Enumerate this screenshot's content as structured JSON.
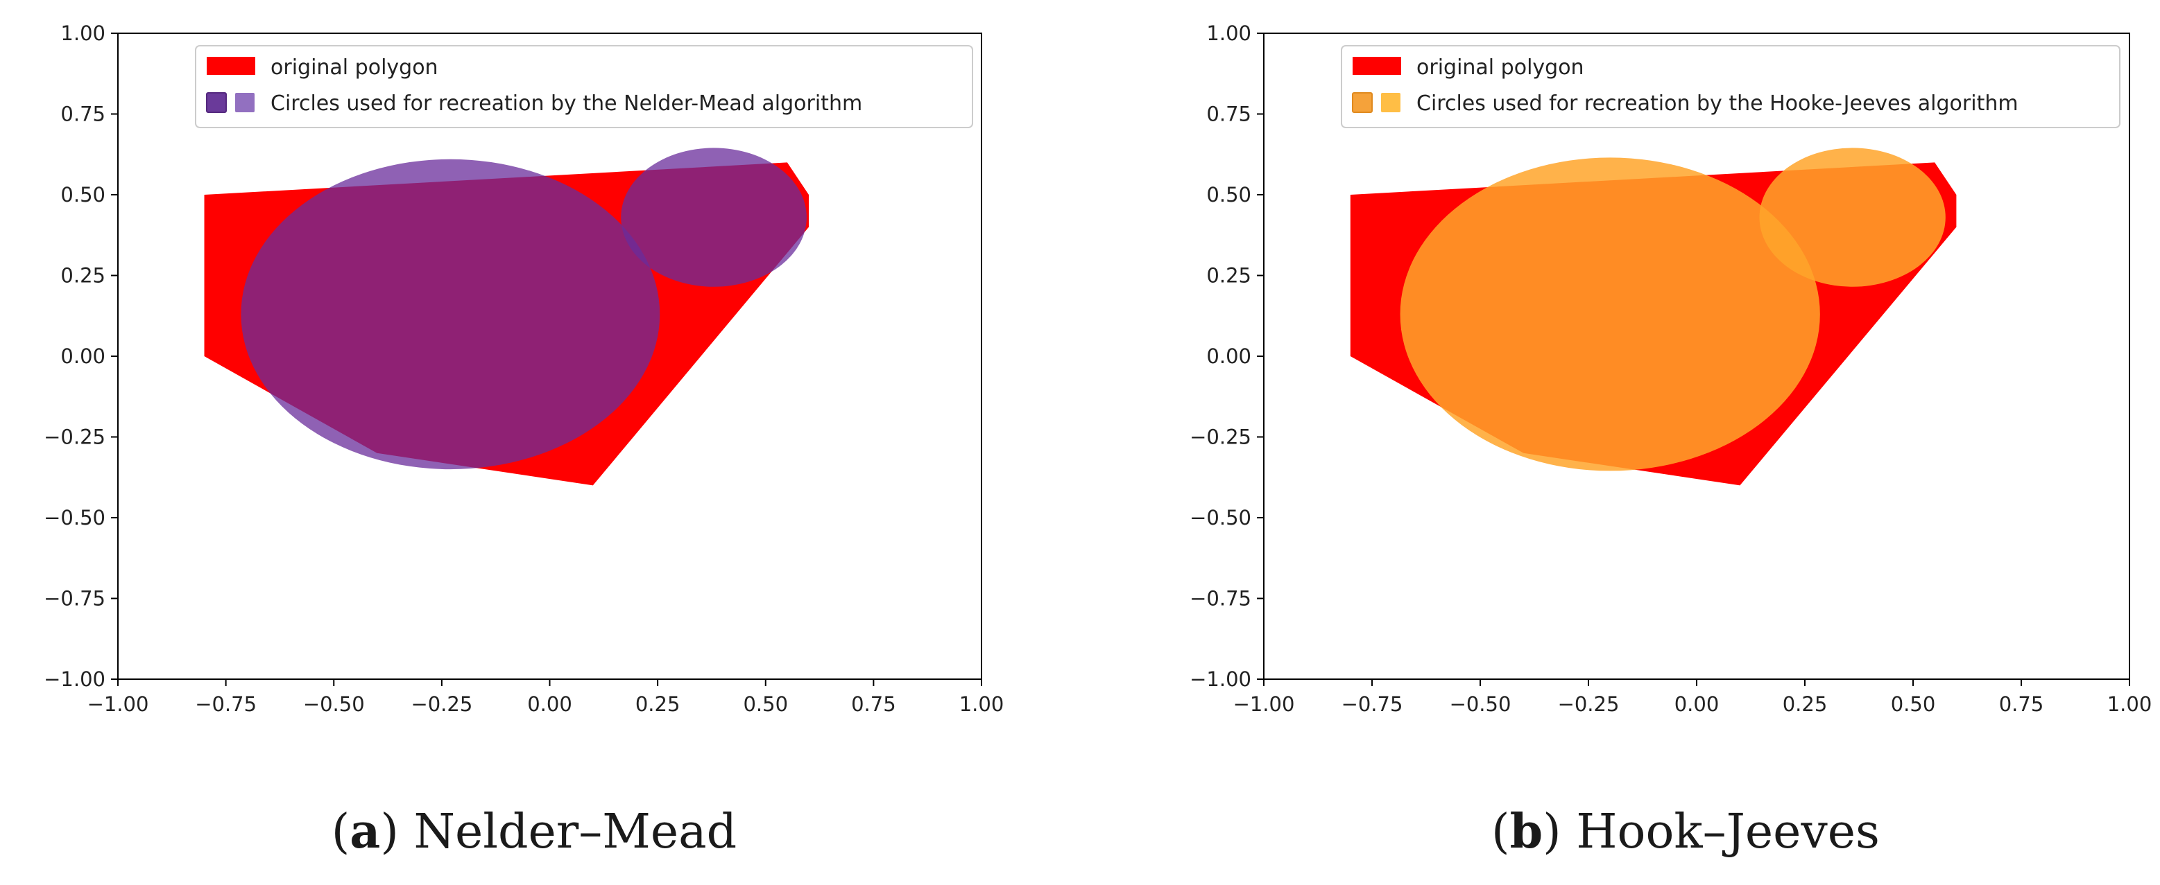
{
  "colors": {
    "polygon": "#ff0000",
    "nm_circle": "#6a2c9b",
    "nm_legend_a": "#6a3a9a",
    "nm_legend_b": "#9270c0",
    "hj_circle": "#ffa52a",
    "hj_legend_a": "#f5a23a",
    "hj_legend_b": "#ffbe45"
  },
  "chart_data": [
    {
      "type": "area",
      "title": "",
      "xlabel": "",
      "ylabel": "",
      "xlim": [
        -1.0,
        1.0
      ],
      "ylim": [
        -1.0,
        1.0
      ],
      "x_ticks": [
        -1.0,
        -0.75,
        -0.5,
        -0.25,
        0.0,
        0.25,
        0.5,
        0.75,
        1.0
      ],
      "y_ticks": [
        -1.0,
        -0.75,
        -0.5,
        -0.25,
        0.0,
        0.25,
        0.5,
        0.75,
        1.0
      ],
      "x_tick_labels": [
        "−1.00",
        "−0.75",
        "−0.50",
        "−0.25",
        "0.00",
        "0.25",
        "0.50",
        "0.75",
        "1.00"
      ],
      "y_tick_labels": [
        "−1.00",
        "−0.75",
        "−0.50",
        "−0.25",
        "0.00",
        "0.25",
        "0.50",
        "0.75",
        "1.00"
      ],
      "grid": false,
      "legend_position": "top-center",
      "polygon": {
        "name": "original polygon",
        "points": [
          [
            -0.8,
            0.5
          ],
          [
            0.55,
            0.6
          ],
          [
            0.6,
            0.5
          ],
          [
            0.6,
            0.4
          ],
          [
            0.1,
            -0.4
          ],
          [
            -0.4,
            -0.3
          ],
          [
            -0.8,
            0.0
          ]
        ]
      },
      "circles": {
        "name": "Circles used for recreation by the Nelder-Mead algorithm",
        "items": [
          {
            "cx": -0.23,
            "cy": 0.13,
            "rx": 0.485,
            "ry": 0.48
          },
          {
            "cx": 0.38,
            "cy": 0.43,
            "rx": 0.215,
            "ry": 0.215
          }
        ]
      },
      "caption_letter": "(a)",
      "caption_text": " Nelder–Mead"
    },
    {
      "type": "area",
      "title": "",
      "xlabel": "",
      "ylabel": "",
      "xlim": [
        -1.0,
        1.0
      ],
      "ylim": [
        -1.0,
        1.0
      ],
      "x_ticks": [
        -1.0,
        -0.75,
        -0.5,
        -0.25,
        0.0,
        0.25,
        0.5,
        0.75,
        1.0
      ],
      "y_ticks": [
        -1.0,
        -0.75,
        -0.5,
        -0.25,
        0.0,
        0.25,
        0.5,
        0.75,
        1.0
      ],
      "x_tick_labels": [
        "−1.00",
        "−0.75",
        "−0.50",
        "−0.25",
        "0.00",
        "0.25",
        "0.50",
        "0.75",
        "1.00"
      ],
      "y_tick_labels": [
        "−1.00",
        "−0.75",
        "−0.50",
        "−0.25",
        "0.00",
        "0.25",
        "0.50",
        "0.75",
        "1.00"
      ],
      "grid": false,
      "legend_position": "top-center",
      "polygon": {
        "name": "original polygon",
        "points": [
          [
            -0.8,
            0.5
          ],
          [
            0.55,
            0.6
          ],
          [
            0.6,
            0.5
          ],
          [
            0.6,
            0.4
          ],
          [
            0.1,
            -0.4
          ],
          [
            -0.4,
            -0.3
          ],
          [
            -0.8,
            0.0
          ]
        ]
      },
      "circles": {
        "name": "Circles used for recreation by the Hooke-Jeeves algorithm",
        "items": [
          {
            "cx": -0.2,
            "cy": 0.13,
            "rx": 0.485,
            "ry": 0.485
          },
          {
            "cx": 0.36,
            "cy": 0.43,
            "rx": 0.215,
            "ry": 0.215
          }
        ]
      },
      "caption_letter": "(b)",
      "caption_text": " Hook–Jeeves"
    }
  ]
}
